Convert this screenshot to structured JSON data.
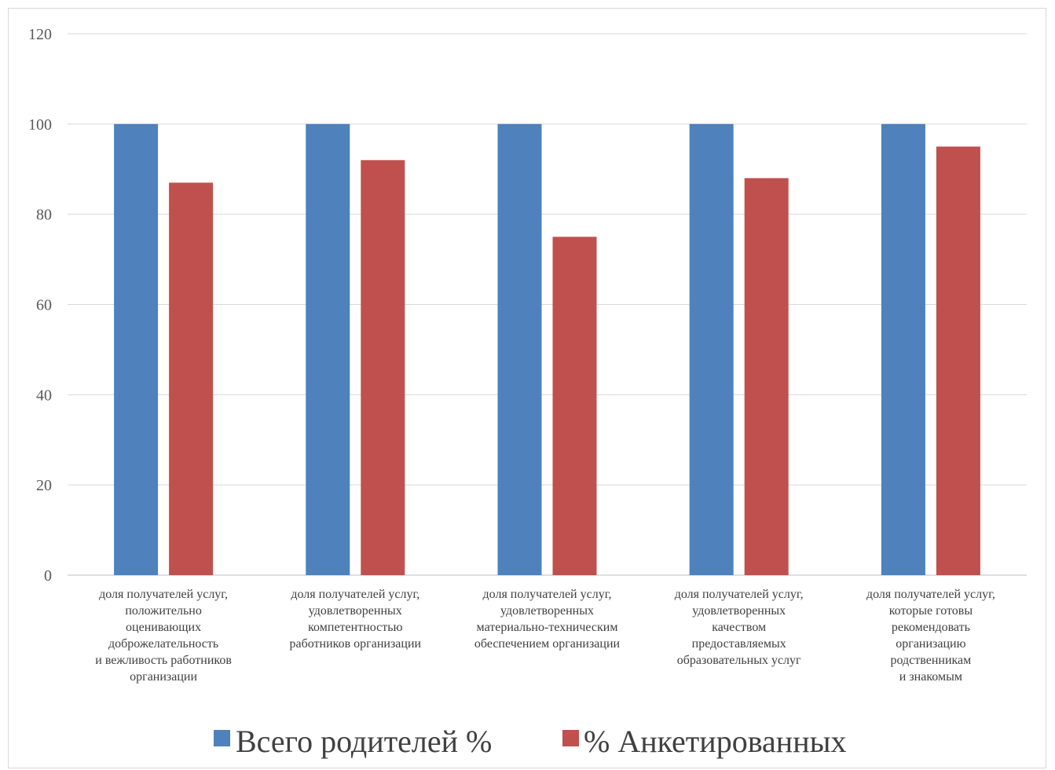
{
  "chart_data": {
    "type": "bar",
    "title": "",
    "xlabel": "",
    "ylabel": "",
    "ylim": [
      0,
      120
    ],
    "yticks": [
      "0",
      "20",
      "40",
      "60",
      "80",
      "100",
      "120"
    ],
    "grid": true,
    "legend_position": "bottom",
    "categories": [
      [
        "доля получателей услуг,",
        "положительно",
        "оценивающих",
        "доброжелательность",
        "и вежливость работников",
        "организации"
      ],
      [
        "доля получателей услуг,",
        "удовлетворенных",
        "компетентностью",
        "работников организации"
      ],
      [
        "доля получателей услуг,",
        "удовлетворенных",
        "материально-техническим",
        "обеспечением организации"
      ],
      [
        "доля получателей услуг,",
        "удовлетворенных",
        "качеством",
        "предоставляемых",
        "образовательных услуг"
      ],
      [
        "доля получателей услуг,",
        "которые готовы",
        "рекомендовать",
        "организацию",
        "родственникам",
        "и знакомым"
      ]
    ],
    "series": [
      {
        "name": "Всего родителей %",
        "color": "#4f81bd",
        "values": [
          100,
          100,
          100,
          100,
          100
        ]
      },
      {
        "name": "% Анкетированных",
        "color": "#c0504d",
        "values": [
          87,
          92,
          75,
          88,
          95
        ]
      }
    ]
  }
}
